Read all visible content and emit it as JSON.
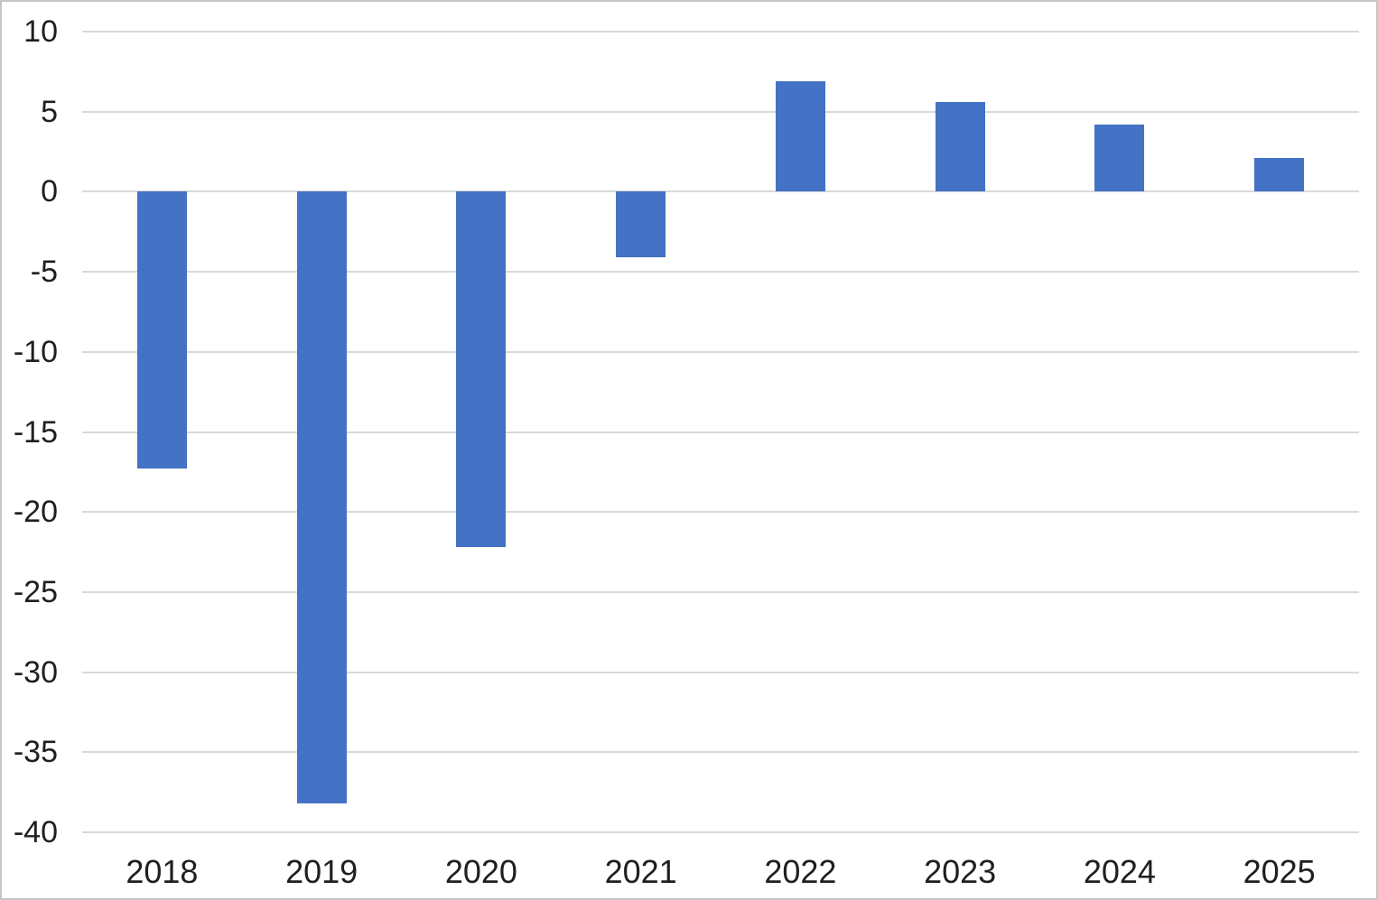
{
  "chart_data": {
    "type": "bar",
    "title": "",
    "xlabel": "",
    "ylabel": "",
    "categories": [
      "2018",
      "2019",
      "2020",
      "2021",
      "2022",
      "2023",
      "2024",
      "2025"
    ],
    "values": [
      -17.3,
      -38.2,
      -22.2,
      -4.1,
      6.9,
      5.6,
      4.2,
      2.1
    ],
    "ylim": [
      -40,
      10
    ],
    "yticks": [
      10,
      5,
      0,
      -5,
      -10,
      -15,
      -20,
      -25,
      -30,
      -35,
      -40
    ],
    "ytick_labels": [
      "10",
      "5",
      "0",
      "-5",
      "-10",
      "-15",
      "-20",
      "-25",
      "-30",
      "-35",
      "-40"
    ],
    "grid": true,
    "legend_position": "none",
    "colors": {
      "bar": "#4472C4",
      "gridline": "#D9D9D9",
      "tick_text": "#1F1F1F",
      "background": "#FFFFFF"
    }
  }
}
